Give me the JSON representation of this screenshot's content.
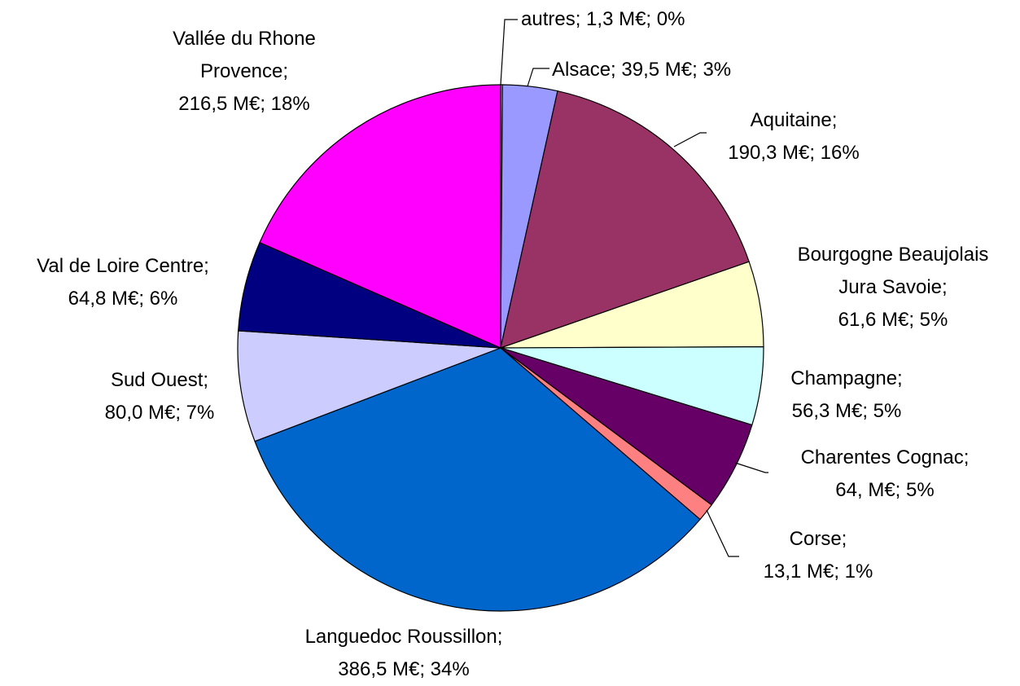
{
  "chart_data": {
    "type": "pie",
    "categories": [
      "autres",
      "Alsace",
      "Aquitaine",
      "Bourgogne Beaujolais Jura Savoie",
      "Champagne",
      "Charentes Cognac",
      "Corse",
      "Languedoc Roussillon",
      "Sud Ouest",
      "Val de Loire Centre",
      "Vallée du Rhone Provence"
    ],
    "values": [
      1.3,
      39.5,
      190.3,
      61.6,
      56.3,
      64,
      13.1,
      386.5,
      80.0,
      64.8,
      216.5
    ],
    "value_labels": [
      "1,3 M€; 0%",
      "39,5 M€; 3%",
      "190,3 M€; 16%",
      "61,6 M€; 5%",
      "56,3 M€; 5%",
      "64, M€; 5%",
      "13,1 M€; 1%",
      "386,5 M€; 34%",
      "80,0 M€; 7%",
      "64,8 M€; 6%",
      "216,5 M€; 18%"
    ],
    "separator": "; ",
    "colors": [
      "#c0c0c0",
      "#9999ff",
      "#993366",
      "#ffffcc",
      "#ccffff",
      "#660066",
      "#ff8080",
      "#0066cc",
      "#ccccff",
      "#000080",
      "#ff00ff"
    ]
  }
}
